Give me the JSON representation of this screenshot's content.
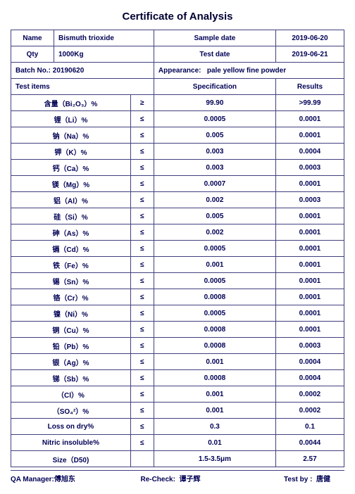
{
  "doc": {
    "title": "Certificate of Analysis",
    "labels": {
      "name": "Name",
      "qty": "Qty",
      "sampleDate": "Sample date",
      "testDate": "Test date",
      "batch": "Batch No.: ",
      "appearance": "Appearance:",
      "testItems": "Test items",
      "specification": "Specification",
      "results": "Results",
      "qaManager": "QA Manager:",
      "recheck": "Re-Check:",
      "testBy": "Test by :"
    },
    "header": {
      "name": "Bismuth trioxide",
      "qty": "1000Kg",
      "sampleDate": "2019-06-20",
      "testDate": "2019-06-21",
      "batchNo": "20190620",
      "appearance": "pale yellow fine powder",
      "qaManager": "傅旭东",
      "rechecker": "谭子辉",
      "tester": "唐健"
    },
    "rows": [
      {
        "item": "含量（Bi₂O₃）%",
        "op": "≥",
        "spec": "99.90",
        "result": ">99.99"
      },
      {
        "item": "锂（Li）%",
        "op": "≤",
        "spec": "0.0005",
        "result": "0.0001"
      },
      {
        "item": "钠（Na）%",
        "op": "≤",
        "spec": "0.005",
        "result": "0.0001"
      },
      {
        "item": "钾（K）%",
        "op": "≤",
        "spec": "0.003",
        "result": "0.0004"
      },
      {
        "item": "钙（Ca）%",
        "op": "≤",
        "spec": "0.003",
        "result": "0.0003"
      },
      {
        "item": "镁（Mg）%",
        "op": "≤",
        "spec": "0.0007",
        "result": "0.0001"
      },
      {
        "item": "铝（Al）%",
        "op": "≤",
        "spec": "0.002",
        "result": "0.0003"
      },
      {
        "item": "硅（Si）%",
        "op": "≤",
        "spec": "0.005",
        "result": "0.0001"
      },
      {
        "item": "砷（As）%",
        "op": "≤",
        "spec": "0.002",
        "result": "0.0001"
      },
      {
        "item": "镉（Cd）%",
        "op": "≤",
        "spec": "0.0005",
        "result": "0.0001"
      },
      {
        "item": "铁（Fe）%",
        "op": "≤",
        "spec": "0.001",
        "result": "0.0001"
      },
      {
        "item": "锡（Sn）%",
        "op": "≤",
        "spec": "0.0005",
        "result": "0.0001"
      },
      {
        "item": "铬（Cr）%",
        "op": "≤",
        "spec": "0.0008",
        "result": "0.0001"
      },
      {
        "item": "镍（Ni）%",
        "op": "≤",
        "spec": "0.0005",
        "result": "0.0001"
      },
      {
        "item": "铜（Cu）%",
        "op": "≤",
        "spec": "0.0008",
        "result": "0.0001"
      },
      {
        "item": "铅（Pb）%",
        "op": "≤",
        "spec": "0.0008",
        "result": "0.0003"
      },
      {
        "item": "银（Ag）%",
        "op": "≤",
        "spec": "0.001",
        "result": "0.0004"
      },
      {
        "item": "锑（Sb）%",
        "op": "≤",
        "spec": "0.0008",
        "result": "0.0004"
      },
      {
        "item": "（Cl）%",
        "op": "≤",
        "spec": "0.001",
        "result": "0.0002"
      },
      {
        "item": "（SO₄²）%",
        "op": "≤",
        "spec": "0.001",
        "result": "0.0002"
      },
      {
        "item": "Loss on dry%",
        "op": "≤",
        "spec": "0.3",
        "result": "0.1"
      },
      {
        "item": "Nitric insoluble%",
        "op": "≤",
        "spec": "0.01",
        "result": "0.0044"
      },
      {
        "item": "Size（D50)",
        "op": "",
        "spec": "1.5-3.5μm",
        "result": "2.57"
      }
    ]
  }
}
